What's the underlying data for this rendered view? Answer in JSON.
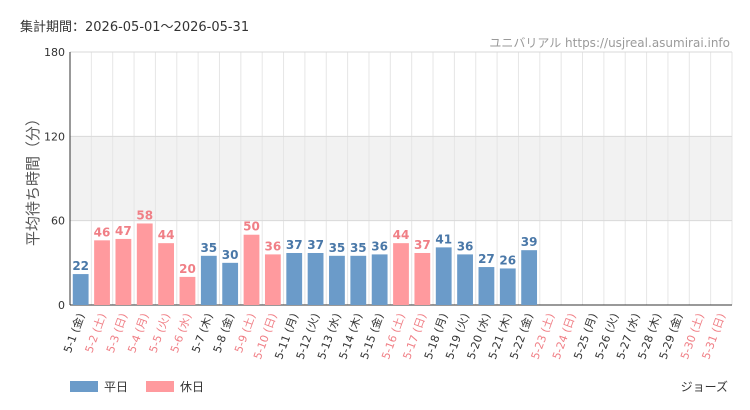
{
  "header": {
    "period": "集計期間：2026-05-01〜2026-05-31",
    "source": "ユニバリアル  https://usjreal.asumirai.info"
  },
  "legend": {
    "weekday_label": "平日",
    "holiday_label": "休日"
  },
  "attraction": "ジョーズ",
  "colors": {
    "weekday": "#6b9bc9",
    "holiday": "#ff9a9e",
    "weekday_text": "#4a78a8",
    "holiday_text": "#f07f86",
    "band": "#f2f2f2"
  },
  "chart_data": {
    "type": "bar",
    "title": "",
    "xlabel": "",
    "ylabel": "平均待ち時間（分）",
    "ylim": [
      0,
      180
    ],
    "yticks": [
      0,
      60,
      120,
      180
    ],
    "grid": true,
    "shaded_band": [
      60,
      120
    ],
    "legend_position": "bottom-left",
    "categories": [
      "5-1 (金)",
      "5-2 (土)",
      "5-3 (日)",
      "5-4 (月)",
      "5-5 (火)",
      "5-6 (水)",
      "5-7 (木)",
      "5-8 (金)",
      "5-9 (土)",
      "5-10 (日)",
      "5-11 (月)",
      "5-12 (火)",
      "5-13 (水)",
      "5-14 (木)",
      "5-15 (金)",
      "5-16 (土)",
      "5-17 (日)",
      "5-18 (月)",
      "5-19 (火)",
      "5-20 (水)",
      "5-21 (木)",
      "5-22 (金)",
      "5-23 (土)",
      "5-24 (日)",
      "5-25 (月)",
      "5-26 (火)",
      "5-27 (水)",
      "5-28 (木)",
      "5-29 (金)",
      "5-30 (土)",
      "5-31 (日)"
    ],
    "values": [
      22,
      46,
      47,
      58,
      44,
      20,
      35,
      30,
      50,
      36,
      37,
      37,
      35,
      35,
      36,
      44,
      37,
      41,
      36,
      27,
      26,
      39,
      null,
      null,
      null,
      null,
      null,
      null,
      null,
      null,
      null
    ],
    "day_type": [
      "weekday",
      "holiday",
      "holiday",
      "holiday",
      "holiday",
      "holiday",
      "weekday",
      "weekday",
      "holiday",
      "holiday",
      "weekday",
      "weekday",
      "weekday",
      "weekday",
      "weekday",
      "holiday",
      "holiday",
      "weekday",
      "weekday",
      "weekday",
      "weekday",
      "weekday",
      "holiday",
      "holiday",
      "weekday",
      "weekday",
      "weekday",
      "weekday",
      "weekday",
      "holiday",
      "holiday"
    ]
  }
}
